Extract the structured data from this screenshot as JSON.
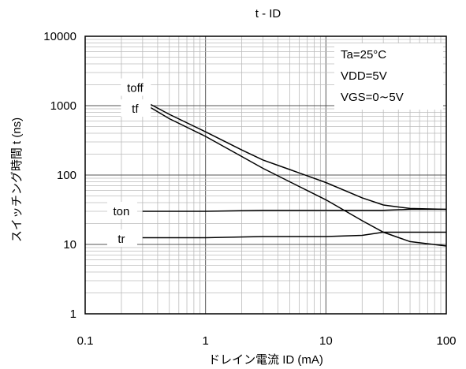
{
  "chart_data": {
    "type": "line",
    "title": "t - ID",
    "xlabel": "ドレイン電流 ID (mA)",
    "ylabel": "スイッチング時間 t (ns)",
    "x_scale": "log",
    "y_scale": "log",
    "xlim": [
      0.1,
      100
    ],
    "ylim": [
      1,
      10000
    ],
    "x_ticks": [
      "0.1",
      "1",
      "10",
      "100"
    ],
    "y_ticks": [
      "1",
      "10",
      "100",
      "1000",
      "10000"
    ],
    "grid": true,
    "conditions": [
      "Ta=25°C",
      "VDD=5V",
      "VGS=0∼5V"
    ],
    "series": [
      {
        "name": "toff",
        "x": [
          0.3,
          0.5,
          1,
          2,
          3,
          5,
          10,
          20,
          30,
          50,
          100
        ],
        "y": [
          1200,
          750,
          420,
          230,
          165,
          120,
          78,
          47,
          37,
          33,
          32
        ]
      },
      {
        "name": "tf",
        "x": [
          0.3,
          0.5,
          1,
          2,
          3,
          5,
          10,
          20,
          30,
          50,
          100
        ],
        "y": [
          1100,
          650,
          360,
          185,
          125,
          80,
          44,
          22,
          15,
          11,
          9.5
        ]
      },
      {
        "name": "ton",
        "x": [
          0.3,
          1,
          3,
          10,
          30,
          50,
          100
        ],
        "y": [
          30,
          30,
          31,
          31,
          31,
          32,
          32
        ]
      },
      {
        "name": "tr",
        "x": [
          0.3,
          1,
          3,
          10,
          20,
          30,
          50,
          100
        ],
        "y": [
          12.5,
          12.5,
          13,
          13,
          13.5,
          15,
          15,
          15
        ]
      }
    ],
    "series_label_anchor_x": [
      0.26,
      0.26,
      0.2,
      0.2
    ]
  }
}
